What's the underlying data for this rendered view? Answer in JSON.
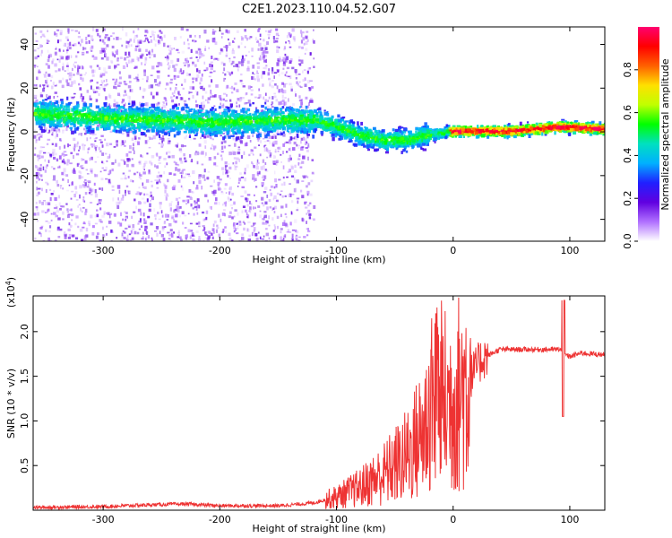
{
  "title": "C2E1.2023.110.04.52.G07",
  "chart_data": [
    {
      "type": "heatmap",
      "xlabel": "Height of straight line (km)",
      "ylabel": "Frequency (Hz)",
      "xlim": [
        -360,
        130
      ],
      "ylim": [
        -50,
        48
      ],
      "xticks": [
        -300,
        -200,
        -100,
        0,
        100
      ],
      "yticks": [
        -40,
        -20,
        0,
        20,
        40
      ],
      "xtick_labels": [
        "-300",
        "-200",
        "-100",
        "0",
        "100"
      ],
      "ytick_labels": [
        "-40",
        "-20",
        "0",
        "20",
        "40"
      ],
      "colorbar": {
        "label": "Normalized spectral amplitude",
        "ticks": [
          0.0,
          0.2,
          0.4,
          0.6,
          0.8
        ],
        "tick_labels": [
          "0.0",
          "0.2",
          "0.4",
          "0.6",
          "0.8"
        ],
        "range": [
          0,
          1
        ],
        "colors": [
          "#ffffff",
          "#b070ff",
          "#6000e0",
          "#2020ff",
          "#00b0ff",
          "#00e0c0",
          "#00ff00",
          "#c0ff00",
          "#ffe000",
          "#ff6000",
          "#ff0000",
          "#ff0070"
        ]
      },
      "ridge_frequency": [
        {
          "x": -360,
          "y": 9
        },
        {
          "x": -300,
          "y": 7
        },
        {
          "x": -250,
          "y": 6
        },
        {
          "x": -200,
          "y": 5
        },
        {
          "x": -150,
          "y": 6
        },
        {
          "x": -120,
          "y": 6
        },
        {
          "x": -100,
          "y": 3
        },
        {
          "x": -80,
          "y": -1
        },
        {
          "x": -60,
          "y": -3
        },
        {
          "x": -40,
          "y": -3
        },
        {
          "x": -25,
          "y": -1
        },
        {
          "x": 0,
          "y": 1
        },
        {
          "x": 50,
          "y": 1
        },
        {
          "x": 90,
          "y": 3
        },
        {
          "x": 130,
          "y": 2
        }
      ]
    },
    {
      "type": "line",
      "xlabel": "Height of straight line (km)",
      "ylabel": "SNR (10 * v/v)",
      "y_multiplier": "(x10",
      "y_multiplier_exp": "4",
      "y_multiplier_close": ")",
      "xlim": [
        -360,
        130
      ],
      "ylim": [
        0,
        2.4
      ],
      "xticks": [
        -300,
        -200,
        -100,
        0,
        100
      ],
      "yticks": [
        0.5,
        1.0,
        1.5,
        2.0
      ],
      "xtick_labels": [
        "-300",
        "-200",
        "-100",
        "0",
        "100"
      ],
      "ytick_labels": [
        "0.5",
        "1.0",
        "1.5",
        "2.0"
      ],
      "color": "#ee3333",
      "points": [
        {
          "x": -360,
          "y": 0.03
        },
        {
          "x": -300,
          "y": 0.04
        },
        {
          "x": -260,
          "y": 0.06
        },
        {
          "x": -230,
          "y": 0.07
        },
        {
          "x": -200,
          "y": 0.05
        },
        {
          "x": -150,
          "y": 0.05
        },
        {
          "x": -120,
          "y": 0.08
        },
        {
          "x": -100,
          "y": 0.15
        },
        {
          "x": -80,
          "y": 0.25
        },
        {
          "x": -60,
          "y": 0.4
        },
        {
          "x": -40,
          "y": 0.6
        },
        {
          "x": -25,
          "y": 0.9
        },
        {
          "x": -15,
          "y": 1.3
        },
        {
          "x": -5,
          "y": 1.2
        },
        {
          "x": 5,
          "y": 1.3
        },
        {
          "x": 15,
          "y": 1.5
        },
        {
          "x": 25,
          "y": 1.7
        },
        {
          "x": 40,
          "y": 1.8
        },
        {
          "x": 60,
          "y": 1.8
        },
        {
          "x": 80,
          "y": 1.8
        },
        {
          "x": 92,
          "y": 1.8
        },
        {
          "x": 95,
          "y": 1.75
        },
        {
          "x": 100,
          "y": 1.72
        },
        {
          "x": 110,
          "y": 1.76
        },
        {
          "x": 130,
          "y": 1.74
        }
      ]
    }
  ]
}
